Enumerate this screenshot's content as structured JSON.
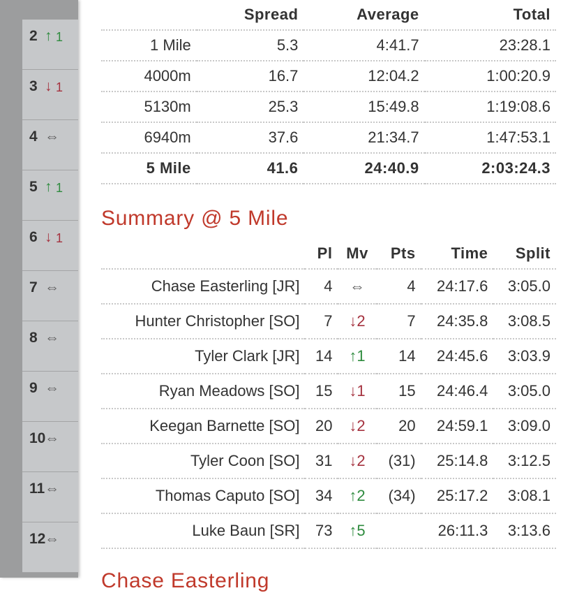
{
  "sidebar": [
    {
      "place": "2",
      "arrow": "↑",
      "change": "1"
    },
    {
      "place": "3",
      "arrow": "↓",
      "change": "1"
    },
    {
      "place": "4",
      "arrow": "⇔"
    },
    {
      "place": "5",
      "arrow": "↑",
      "change": "1"
    },
    {
      "place": "6",
      "arrow": "↓",
      "change": "1"
    },
    {
      "place": "7",
      "arrow": "⇔"
    },
    {
      "place": "8",
      "arrow": "⇔"
    },
    {
      "place": "9",
      "arrow": "⇔"
    },
    {
      "place": "10",
      "arrow": "⇔"
    },
    {
      "place": "11",
      "arrow": "⇔"
    },
    {
      "place": "12",
      "arrow": "⇔"
    }
  ],
  "splits": {
    "headers": [
      "Spread",
      "Average",
      "Total"
    ],
    "rows": [
      [
        "1 Mile",
        "5.3",
        "4:41.7",
        "23:28.1"
      ],
      [
        "4000m",
        "16.7",
        "12:04.2",
        "1:00:20.9"
      ],
      [
        "5130m",
        "25.3",
        "15:49.8",
        "1:19:08.6"
      ],
      [
        "6940m",
        "37.6",
        "21:34.7",
        "1:47:53.1"
      ],
      [
        "5 Mile",
        "41.6",
        "24:40.9",
        "2:03:24.3"
      ]
    ]
  },
  "summary": {
    "title": "Summary @ 5 Mile",
    "headers": [
      "Pl",
      "Mv",
      "Pts",
      "Time",
      "Split"
    ],
    "rows": [
      {
        "name": "Chase Easterling [JR]",
        "pl": "4",
        "arrow": "⇔",
        "pts": "4",
        "time": "24:17.6",
        "split": "3:05.0"
      },
      {
        "name": "Hunter Christopher [SO]",
        "pl": "7",
        "arrow": "↓",
        "change": "2",
        "pts": "7",
        "time": "24:35.8",
        "split": "3:08.5"
      },
      {
        "name": "Tyler Clark [JR]",
        "pl": "14",
        "arrow": "↑",
        "change": "1",
        "pts": "14",
        "time": "24:45.6",
        "split": "3:03.9"
      },
      {
        "name": "Ryan Meadows [SO]",
        "pl": "15",
        "arrow": "↓",
        "change": "1",
        "pts": "15",
        "time": "24:46.4",
        "split": "3:05.0"
      },
      {
        "name": "Keegan Barnette [SO]",
        "pl": "20",
        "arrow": "↓",
        "change": "2",
        "pts": "20",
        "time": "24:59.1",
        "split": "3:09.0"
      },
      {
        "name": "Tyler Coon [SO]",
        "pl": "31",
        "arrow": "↓",
        "change": "2",
        "pts": "(31)",
        "time": "25:14.8",
        "split": "3:12.5"
      },
      {
        "name": "Thomas Caputo [SO]",
        "pl": "34",
        "arrow": "↑",
        "change": "2",
        "pts": "(34)",
        "time": "25:17.2",
        "split": "3:08.1"
      },
      {
        "name": "Luke Baun [SR]",
        "pl": "73",
        "arrow": "↑",
        "change": "5",
        "pts": null,
        "time": "26:11.3",
        "split": "3:13.6"
      }
    ]
  },
  "next_section": {
    "title": "Chase Easterling"
  }
}
